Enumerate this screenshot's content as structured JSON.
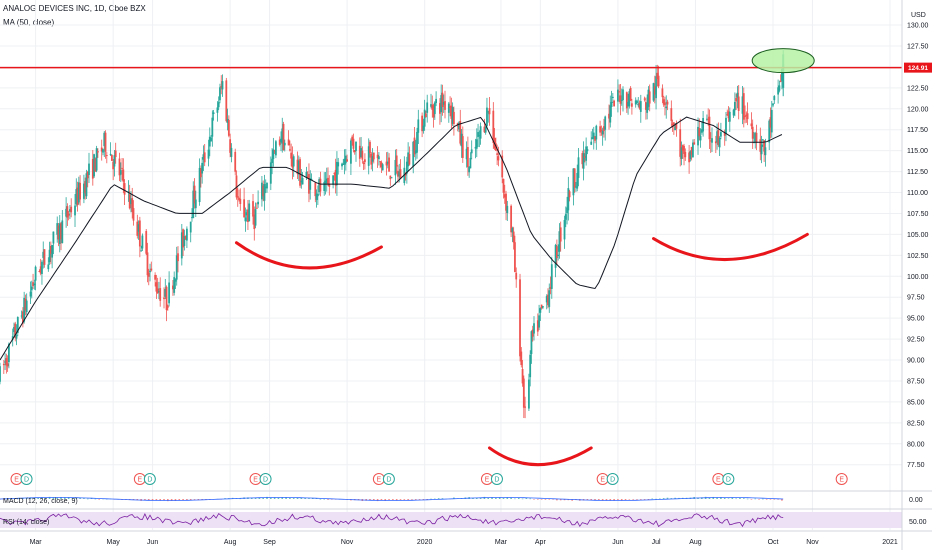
{
  "header": {
    "symbol_line": "ANALOG DEVICES INC, 1D, Cboe BZX",
    "ma_label": "MA (50, close)"
  },
  "price_axis": {
    "currency": "USD",
    "ticks": [
      "77.50",
      "80.00",
      "82.50",
      "85.00",
      "87.50",
      "90.00",
      "92.50",
      "95.00",
      "97.50",
      "100.00",
      "102.50",
      "105.00",
      "107.50",
      "110.00",
      "112.50",
      "115.00",
      "117.50",
      "120.00",
      "122.50",
      "125.00",
      "127.50",
      "130.00"
    ],
    "current_price": "124.91"
  },
  "macd_pane": {
    "label": "MACD (12, 26, close, 9)",
    "tick": "0.00"
  },
  "rsi_pane": {
    "label": "RSI (14, close)",
    "tick": "50.00"
  },
  "time_axis": {
    "labels": [
      "Mar",
      "May",
      "Jun",
      "Aug",
      "Sep",
      "Nov",
      "2020",
      "Mar",
      "Apr",
      "Jun",
      "Jul",
      "Aug",
      "Oct",
      "Nov",
      "2021"
    ]
  },
  "event_markers": [
    {
      "letters": [
        "E",
        "D"
      ]
    },
    {
      "letters": [
        "E",
        "D"
      ]
    },
    {
      "letters": [
        "E",
        "D"
      ]
    },
    {
      "letters": [
        "E",
        "D"
      ]
    },
    {
      "letters": [
        "E",
        "D"
      ]
    },
    {
      "letters": [
        "E",
        "D"
      ]
    },
    {
      "letters": [
        "E",
        "D"
      ]
    },
    {
      "letters": [
        "E"
      ]
    }
  ],
  "colors": {
    "up": "#26a69a",
    "down": "#ef5350",
    "ma": "#131722",
    "resistance": "#e8161a",
    "annotation_arc": "#e8161a",
    "highlight_fill": "#b6f2a6",
    "highlight_stroke": "#1b5e20",
    "rsi_line": "#7b1fa2",
    "rsi_band": "#ede2f5",
    "grid": "#eef0f3"
  },
  "chart_data": {
    "type": "candlestick",
    "title": "ANALOG DEVICES INC, 1D, Cboe BZX",
    "ylim": [
      77.5,
      130
    ],
    "resistance_level": 124.91,
    "price_path": {
      "dates": [
        "2019-02-01",
        "2019-03-01",
        "2019-04-01",
        "2019-04-25",
        "2019-05-10",
        "2019-05-31",
        "2019-06-12",
        "2019-07-10",
        "2019-07-26",
        "2019-08-08",
        "2019-08-20",
        "2019-09-10",
        "2019-09-25",
        "2019-10-15",
        "2019-11-05",
        "2019-11-20",
        "2019-12-15",
        "2020-01-02",
        "2020-01-20",
        "2020-02-05",
        "2020-02-20",
        "2020-03-10",
        "2020-03-20",
        "2020-03-25",
        "2020-04-07",
        "2020-04-25",
        "2020-05-15",
        "2020-06-04",
        "2020-06-20",
        "2020-07-02",
        "2020-07-10",
        "2020-07-24",
        "2020-08-06",
        "2020-08-20",
        "2020-09-04",
        "2020-09-24",
        "2020-10-09"
      ],
      "close": [
        88,
        100,
        109,
        116,
        111,
        100,
        97,
        113,
        123,
        108,
        107,
        117,
        112,
        110,
        116,
        114,
        112,
        120,
        121,
        113,
        120,
        105,
        83,
        92,
        98,
        111,
        117,
        122,
        120,
        123,
        121,
        113,
        118,
        116,
        121,
        115,
        125
      ]
    },
    "ma_50": {
      "dates": [
        "2019-02-01",
        "2019-03-01",
        "2019-04-01",
        "2019-05-01",
        "2019-05-25",
        "2019-06-20",
        "2019-07-10",
        "2019-08-01",
        "2019-08-25",
        "2019-09-15",
        "2019-10-10",
        "2019-11-05",
        "2019-12-05",
        "2020-01-05",
        "2020-01-25",
        "2020-02-15",
        "2020-03-05",
        "2020-03-25",
        "2020-04-10",
        "2020-04-30",
        "2020-05-15",
        "2020-05-30",
        "2020-06-15",
        "2020-07-05",
        "2020-07-25",
        "2020-08-15",
        "2020-09-05",
        "2020-09-25",
        "2020-10-09"
      ],
      "values": [
        90,
        97,
        104,
        111,
        109,
        107.5,
        107.5,
        110,
        113,
        113,
        111,
        111,
        110.5,
        115,
        118,
        119,
        113,
        105,
        102,
        99,
        98.5,
        104,
        112,
        117,
        119,
        118,
        116,
        116,
        117
      ]
    },
    "series": [
      {
        "name": "MA (50, close)"
      },
      {
        "name": "MACD (12, 26, close, 9)"
      },
      {
        "name": "RSI (14, close)"
      }
    ]
  }
}
